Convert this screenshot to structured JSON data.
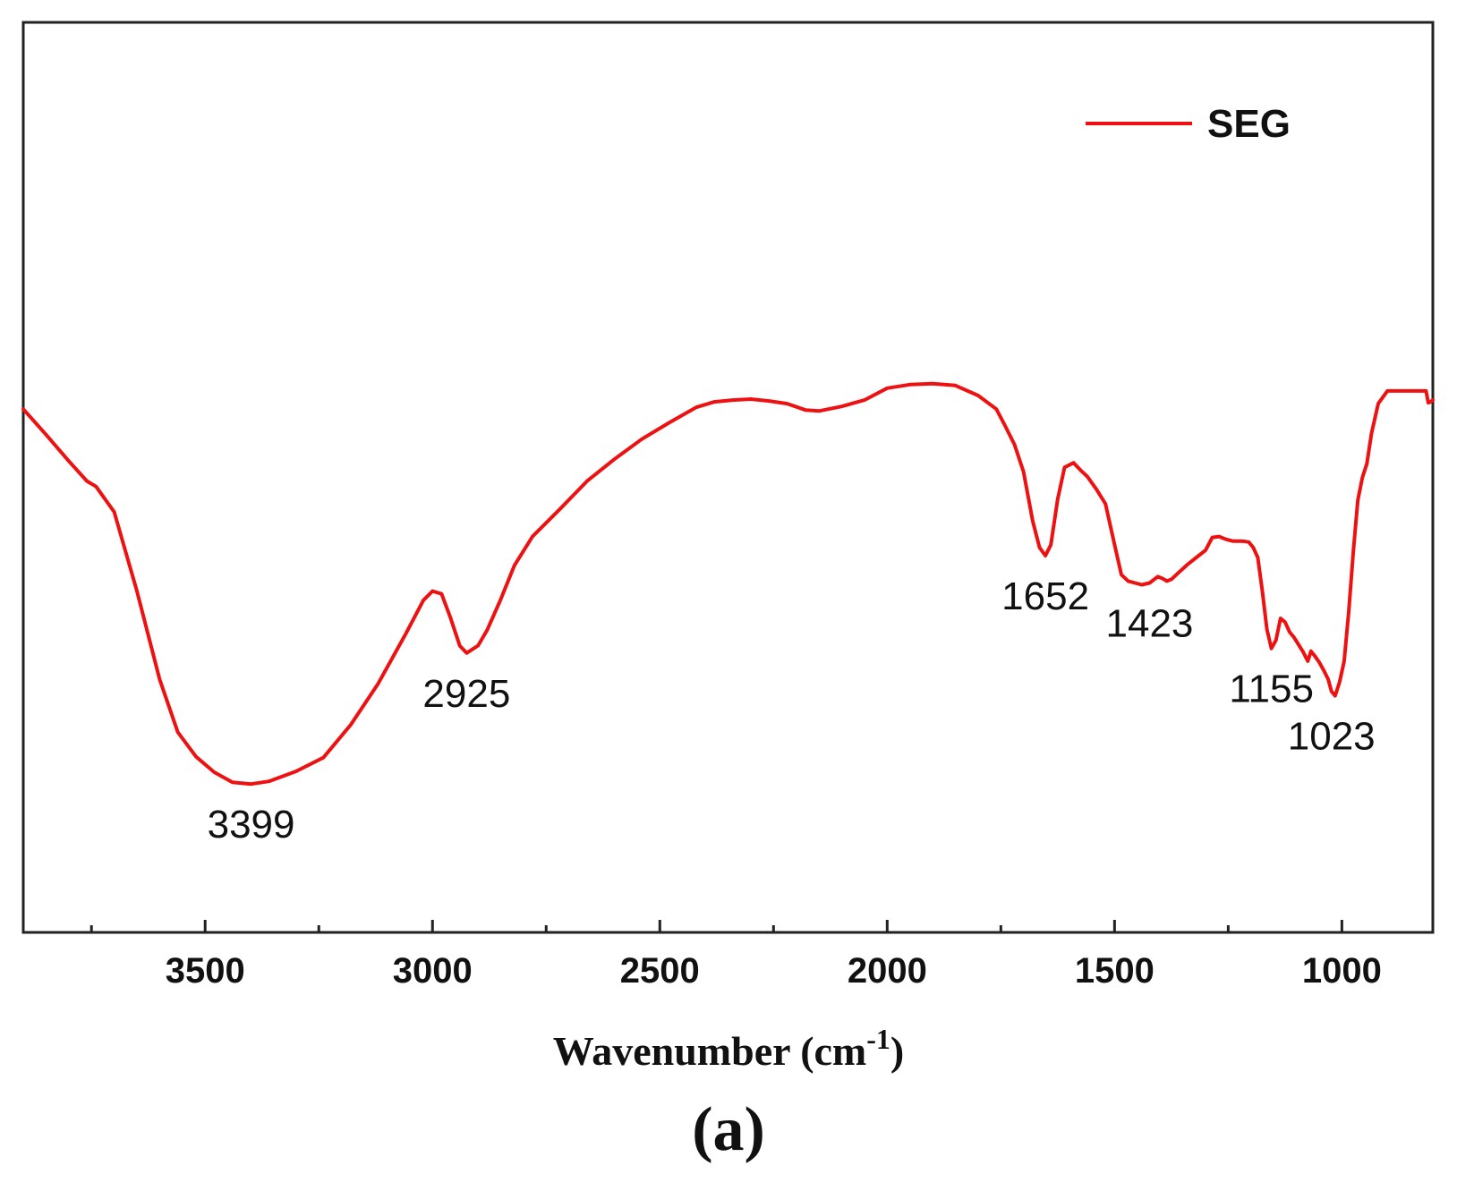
{
  "chart_data": {
    "type": "line",
    "title": "",
    "xlabel": "Wavenumber (cm",
    "xlabel_superscript": "-1",
    "xlabel_close": ")",
    "ylabel": "",
    "xlim": [
      3900,
      800
    ],
    "ylim": [
      0,
      100
    ],
    "x_ticks": [
      3500,
      3000,
      2500,
      2000,
      1500,
      1000
    ],
    "x_tick_labels": [
      "3500",
      "3000",
      "2500",
      "2000",
      "1500",
      "1000"
    ],
    "x_minor_ticks": [
      3750,
      3250,
      2750,
      2250,
      1750,
      1250
    ],
    "grid": false,
    "legend_position": "top-right",
    "series": [
      {
        "name": "SEG",
        "color": "#ee1111",
        "x": [
          3900,
          3850,
          3800,
          3760,
          3740,
          3700,
          3650,
          3600,
          3560,
          3520,
          3480,
          3440,
          3399,
          3360,
          3300,
          3240,
          3180,
          3120,
          3060,
          3020,
          3000,
          2980,
          2960,
          2940,
          2925,
          2900,
          2880,
          2850,
          2820,
          2780,
          2720,
          2660,
          2600,
          2540,
          2480,
          2420,
          2380,
          2340,
          2300,
          2260,
          2220,
          2180,
          2150,
          2100,
          2050,
          2000,
          1950,
          1900,
          1850,
          1800,
          1760,
          1740,
          1720,
          1700,
          1680,
          1665,
          1652,
          1640,
          1625,
          1610,
          1590,
          1575,
          1560,
          1540,
          1520,
          1500,
          1485,
          1470,
          1455,
          1440,
          1423,
          1405,
          1395,
          1385,
          1375,
          1360,
          1340,
          1320,
          1300,
          1285,
          1270,
          1255,
          1240,
          1220,
          1205,
          1195,
          1185,
          1175,
          1165,
          1155,
          1145,
          1135,
          1125,
          1115,
          1105,
          1095,
          1085,
          1075,
          1068,
          1060,
          1050,
          1040,
          1030,
          1023,
          1015,
          1005,
          995,
          985,
          975,
          965,
          955,
          945,
          935,
          920,
          900,
          880,
          860,
          840,
          815,
          810,
          805,
          800
        ],
        "y": [
          57.5,
          54.7,
          51.8,
          49.6,
          49.0,
          46.2,
          37.5,
          27.8,
          22.0,
          19.3,
          17.6,
          16.5,
          16.3,
          16.6,
          17.7,
          19.2,
          22.8,
          27.3,
          32.7,
          36.5,
          37.5,
          37.2,
          34.5,
          31.5,
          30.7,
          31.5,
          33.2,
          36.6,
          40.3,
          43.5,
          46.5,
          49.6,
          52.0,
          54.2,
          56.0,
          57.7,
          58.3,
          58.5,
          58.6,
          58.4,
          58.1,
          57.4,
          57.3,
          57.8,
          58.5,
          59.8,
          60.2,
          60.3,
          60.1,
          59.0,
          57.5,
          55.6,
          53.6,
          50.6,
          45.2,
          42.3,
          41.4,
          42.6,
          47.6,
          51.1,
          51.6,
          50.8,
          50.1,
          48.7,
          47.1,
          42.6,
          39.3,
          38.6,
          38.4,
          38.2,
          38.4,
          39.1,
          38.9,
          38.6,
          38.8,
          39.5,
          40.4,
          41.2,
          42.0,
          43.4,
          43.5,
          43.2,
          43.0,
          43.0,
          42.9,
          42.3,
          41.2,
          37.5,
          33.3,
          31.2,
          32.1,
          34.5,
          34.1,
          33.0,
          32.4,
          31.6,
          30.8,
          29.8,
          30.9,
          30.4,
          29.7,
          28.8,
          27.8,
          26.5,
          26.0,
          27.5,
          29.8,
          35.2,
          41.8,
          47.5,
          50.0,
          51.5,
          54.8,
          58.1,
          59.5,
          59.5,
          59.5,
          59.5,
          59.5,
          58.2,
          58.3,
          58.5
        ]
      }
    ],
    "annotations": [
      {
        "text": "3399",
        "x": 3399,
        "y": 16.3
      },
      {
        "text": "2925",
        "x": 2925,
        "y": 30.7
      },
      {
        "text": "1652",
        "x": 1652,
        "y": 41.4
      },
      {
        "text": "1423",
        "x": 1423,
        "y": 38.4
      },
      {
        "text": "1155",
        "x": 1155,
        "y": 31.2
      },
      {
        "text": "1023",
        "x": 1023,
        "y": 26.0
      }
    ]
  },
  "panel_label": "a"
}
